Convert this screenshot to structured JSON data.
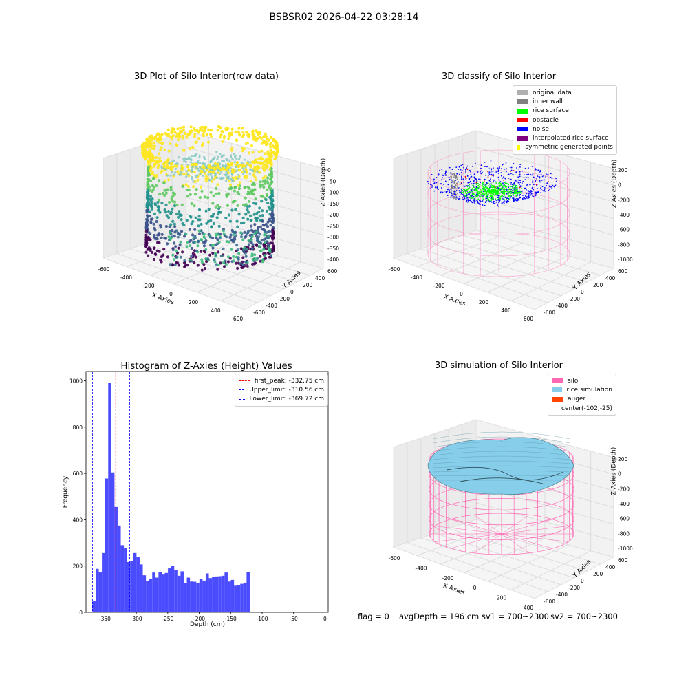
{
  "suptitle": "BSBSR02 2026-04-22 03:28:14",
  "colors": {
    "original": "#b0b0b0",
    "inner_wall": "#808080",
    "rice_surface": "#00ff00",
    "obstacle": "#ff0000",
    "noise": "#0000ff",
    "interpolated": "#800080",
    "symmetric": "#ffff00",
    "silo": "#ff69b4",
    "rice_sim": "#87ceeb",
    "auger": "#ff4500",
    "hist_bar": "#4c4cff",
    "peak_line": "#ff0000",
    "limit_line": "#0000ff"
  },
  "plot1": {
    "title": "3D Plot of Silo Interior(row data)",
    "xlabel": "X Axies",
    "ylabel": "Y Axies",
    "zlabel": "Z Axies (Depth)",
    "xticks": [
      "-600",
      "-400",
      "-200",
      "0",
      "200",
      "400",
      "600"
    ],
    "yticks": [
      "-600",
      "-400",
      "-200",
      "0",
      "200",
      "400",
      "600"
    ],
    "zticks": [
      "0",
      "-50",
      "-100",
      "-150",
      "-200",
      "-250",
      "-300",
      "-350",
      "-400"
    ]
  },
  "plot2": {
    "title": "3D classify of Silo Interior",
    "xlabel": "X Axies",
    "ylabel": "Y Axies",
    "zlabel": "Z Axies (Depth)",
    "xticks": [
      "-600",
      "-400",
      "-200",
      "0",
      "200",
      "400",
      "600"
    ],
    "yticks": [
      "-600",
      "-400",
      "-200",
      "0",
      "200",
      "400",
      "600"
    ],
    "zticks": [
      "200",
      "0",
      "-200",
      "-400",
      "-600",
      "-800",
      "-1000"
    ],
    "legend": [
      {
        "label": "original data",
        "color_key": "original"
      },
      {
        "label": "inner wall",
        "color_key": "inner_wall"
      },
      {
        "label": "rice surface",
        "color_key": "rice_surface"
      },
      {
        "label": "obstacle",
        "color_key": "obstacle"
      },
      {
        "label": "noise",
        "color_key": "noise"
      },
      {
        "label": "interpolated rice surface",
        "color_key": "interpolated"
      },
      {
        "label": "symmetric generated points",
        "color_key": "symmetric"
      }
    ]
  },
  "plot4": {
    "title": "3D simulation of Silo Interior",
    "xlabel": "X Axies",
    "ylabel": "Y Axies",
    "zlabel": "Z Axies (Depth)",
    "xticks": [
      "-600",
      "-400",
      "-200",
      "0",
      "200",
      "400"
    ],
    "yticks": [
      "-600",
      "-400",
      "-200",
      "0",
      "200",
      "400",
      "600"
    ],
    "zticks": [
      "200",
      "0",
      "-200",
      "-400",
      "-600",
      "-800",
      "-1000"
    ],
    "legend": [
      {
        "label": "silo",
        "color_key": "silo"
      },
      {
        "label": "rice simulation",
        "color_key": "rice_sim"
      },
      {
        "label": "auger",
        "color_key": "auger"
      },
      {
        "label": "center(-102,-25)",
        "color_key": ""
      }
    ]
  },
  "chart_data": {
    "type": "bar",
    "title": "Histogram of Z-Axies (Height) Values",
    "xlabel": "Depth (cm)",
    "ylabel": "Frequency",
    "xlim": [
      -380,
      5
    ],
    "ylim": [
      0,
      1040
    ],
    "xticks": [
      -350,
      -300,
      -250,
      -200,
      -150,
      -100,
      -50,
      0
    ],
    "yticks": [
      0,
      200,
      400,
      600,
      800,
      1000
    ],
    "bin_start": -369.72,
    "bin_width": 5,
    "values": [
      48,
      188,
      175,
      256,
      578,
      990,
      604,
      455,
      375,
      290,
      277,
      217,
      220,
      256,
      240,
      207,
      160,
      135,
      143,
      172,
      150,
      173,
      163,
      170,
      190,
      200,
      182,
      158,
      177,
      125,
      150,
      133,
      132,
      128,
      145,
      137,
      168,
      148,
      152,
      155,
      156,
      158,
      172,
      133,
      140,
      115,
      118,
      123,
      128,
      175
    ],
    "vlines": [
      {
        "label": "first_peak: -332.75 cm",
        "x": -332.75,
        "color_key": "peak_line"
      },
      {
        "label": "Upper_limit: -310.56 cm",
        "x": -310.56,
        "color_key": "limit_line"
      },
      {
        "label": "Lower_limit: -369.72 cm",
        "x": -369.72,
        "color_key": "limit_line"
      }
    ],
    "legend_position": "upper right"
  },
  "status": {
    "flag": "flag = 0",
    "avg_depth": "avgDepth = 196 cm",
    "sv1": "sv1 = 700~2300",
    "sv2": "sv2 = 700~2300"
  }
}
